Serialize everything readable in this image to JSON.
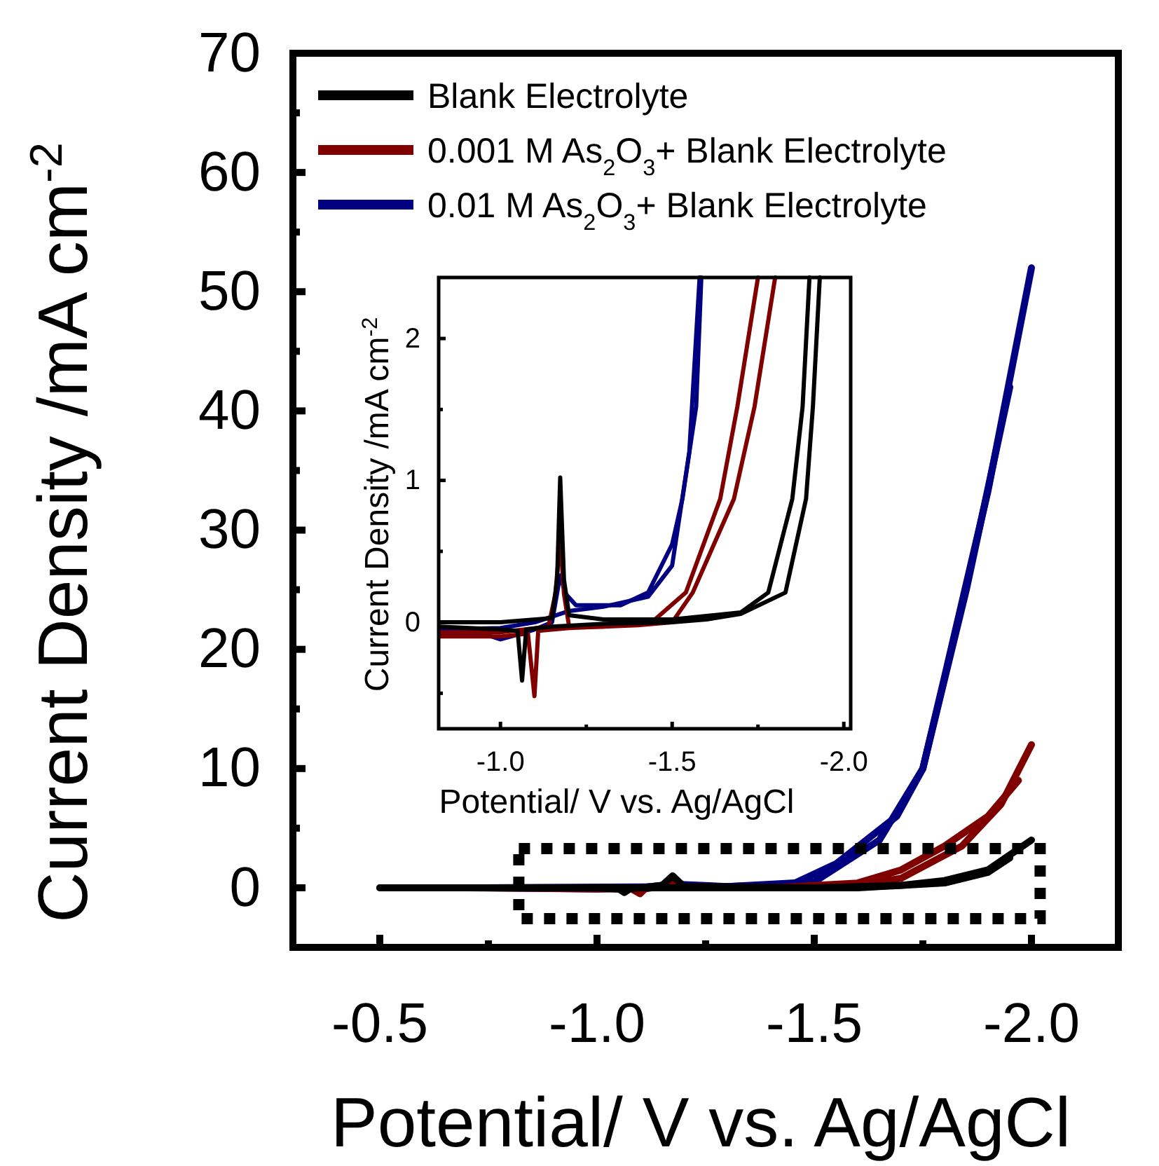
{
  "chart_data": [
    {
      "type": "line",
      "xlabel": "Potential/ V vs. Ag/AgCl",
      "ylabel": "Current Density /mA cm$^{-2}$",
      "xlim": [
        -0.3,
        -2.2
      ],
      "ylim": [
        -5,
        70
      ],
      "xticks": [
        {
          "value": -0.5,
          "label": "-0.5"
        },
        {
          "value": -0.75,
          "label": null
        },
        {
          "value": -1.0,
          "label": "-1.0"
        },
        {
          "value": -1.25,
          "label": null
        },
        {
          "value": -1.5,
          "label": "-1.5"
        },
        {
          "value": -1.75,
          "label": null
        },
        {
          "value": -2.0,
          "label": "-2.0"
        }
      ],
      "yticks": [
        0,
        {
          "value": 5,
          "label": null
        },
        10,
        {
          "value": 15,
          "label": null
        },
        20,
        {
          "value": 25,
          "label": null
        },
        30,
        {
          "value": 35,
          "label": null
        },
        40,
        {
          "value": 45,
          "label": null
        },
        50,
        {
          "value": 55,
          "label": null
        },
        60,
        {
          "value": 65,
          "label": null
        },
        70
      ],
      "legend": "top left",
      "line_style": "solid",
      "marker": "none",
      "grid": false,
      "series": [
        {
          "name": "Blank Electrolyte",
          "color": "#000000",
          "x": [
            -0.5,
            -1.0,
            -1.05,
            -1.063,
            -1.075,
            -1.15,
            -1.174,
            -1.2,
            -1.5,
            -1.7,
            -1.8,
            -1.9,
            -2.0
          ],
          "values": [
            0,
            0,
            -0.1,
            -0.4,
            -0.1,
            0.2,
            1.0,
            0.1,
            0,
            0.2,
            0.6,
            1.5,
            4.0
          ]
        },
        {
          "color": "#000000",
          "x": [
            -1.95,
            -1.9,
            -1.8,
            -1.6,
            -1.0,
            -0.5
          ],
          "values": [
            2.5,
            1.3,
            0.4,
            0,
            0,
            0
          ]
        },
        {
          "name": "0.001 M As$_{2}$O$_{3}$+  Blank Electrolyte",
          "color": "#800000",
          "x": [
            -0.7,
            -1.08,
            -1.099,
            -1.11,
            -1.16,
            -1.174,
            -1.19,
            -1.5,
            -1.6,
            -1.7,
            -1.84,
            -1.93,
            -2.0
          ],
          "values": [
            0,
            -0.1,
            -0.5,
            -0.1,
            0.2,
            0.6,
            0.1,
            0,
            0.2,
            0.8,
            3.5,
            7,
            12
          ]
        },
        {
          "color": "#800000",
          "x": [
            -1.97,
            -1.9,
            -1.8,
            -1.7,
            -1.6,
            -1.4,
            -0.7
          ],
          "values": [
            9,
            6,
            3.5,
            1.5,
            0.4,
            0,
            0
          ]
        },
        {
          "name": "0.01 M As$_{2}$O$_{3}$+  Blank Electrolyte",
          "color": "#000080",
          "x": [
            -0.74,
            -1.0,
            -1.1,
            -1.174,
            -1.3,
            -1.45,
            -1.55,
            -1.69,
            -1.75,
            -1.8,
            -1.9,
            -2.0
          ],
          "values": [
            0,
            -0.1,
            0,
            0.3,
            0.1,
            0.3,
            2.0,
            6,
            10,
            17.7,
            33.3,
            52
          ]
        },
        {
          "color": "#000080",
          "x": [
            -1.95,
            -1.85,
            -1.75,
            -1.65,
            -1.5,
            -1.3,
            -0.74
          ],
          "values": [
            42,
            25,
            10,
            4,
            0.5,
            0.1,
            0
          ]
        }
      ]
    },
    {
      "type": "line",
      "xlabel": "Potential/ V vs. Ag/AgCl",
      "ylabel": "Current Density /mA cm$^{-2}$",
      "xlim": [
        -0.82,
        -2.02
      ],
      "ylim": [
        -0.75,
        2.43
      ],
      "xticks": [
        {
          "value": -1.0,
          "label": "-1.0"
        },
        {
          "value": -1.25,
          "label": null
        },
        {
          "value": -1.5,
          "label": "-1.5"
        },
        {
          "value": -1.75,
          "label": null
        },
        {
          "value": -2.0,
          "label": "-2.0"
        }
      ],
      "yticks": [
        {
          "value": -0.5,
          "label": null
        },
        0,
        {
          "value": 0.5,
          "label": null
        },
        1,
        {
          "value": 1.5,
          "label": null
        },
        2
      ],
      "legend": false,
      "line_style": "solid",
      "marker": "none",
      "grid": false,
      "series": [
        {
          "color": "#000000",
          "x": [
            -0.82,
            -1.0,
            -1.05,
            -1.063,
            -1.075,
            -1.15,
            -1.3,
            -1.5,
            -1.6,
            -1.7,
            -1.83,
            -1.89,
            -1.91,
            -1.93
          ],
          "values": [
            -0.03,
            -0.05,
            -0.06,
            -0.41,
            -0.05,
            -0.03,
            -0.01,
            0,
            0.02,
            0.06,
            0.21,
            0.87,
            1.52,
            2.43
          ]
        },
        {
          "color": "#000000",
          "x": [
            -1.9,
            -1.88,
            -1.85,
            -1.78,
            -1.7,
            -1.5,
            -1.3,
            -1.2,
            -1.185,
            -1.174,
            -1.165,
            -1.15,
            -1.0,
            -0.82
          ],
          "values": [
            2.43,
            1.52,
            0.87,
            0.21,
            0.07,
            0.02,
            0.02,
            0.05,
            0.3,
            1.02,
            0.3,
            0.03,
            0,
            0
          ]
        },
        {
          "color": "#800000",
          "x": [
            -0.82,
            -1.0,
            -1.08,
            -1.099,
            -1.11,
            -1.2,
            -1.4,
            -1.5,
            -1.56,
            -1.68,
            -1.74,
            -1.8
          ],
          "values": [
            -0.1,
            -0.1,
            -0.08,
            -0.52,
            -0.06,
            -0.04,
            -0.02,
            0,
            0.21,
            0.87,
            1.52,
            2.43
          ]
        },
        {
          "color": "#800000",
          "x": [
            -1.75,
            -1.69,
            -1.64,
            -1.54,
            -1.45,
            -1.3,
            -1.2,
            -1.185,
            -1.174,
            -1.16,
            -1.14,
            -1.0,
            -0.82
          ],
          "values": [
            2.43,
            1.52,
            0.87,
            0.21,
            0.02,
            -0.03,
            -0.03,
            0.2,
            0.59,
            0.2,
            -0.03,
            -0.07,
            -0.07
          ]
        },
        {
          "color": "#000080",
          "x": [
            -0.82,
            -0.95,
            -1.0,
            -1.03,
            -1.1,
            -1.15,
            -1.174,
            -1.19,
            -1.22,
            -1.3,
            -1.35,
            -1.43,
            -1.5,
            -1.53,
            -1.57,
            -1.585
          ],
          "values": [
            -0.08,
            -0.08,
            -0.12,
            -0.1,
            -0.05,
            0,
            0.33,
            0.2,
            0.12,
            0.12,
            0.12,
            0.21,
            0.55,
            0.87,
            1.52,
            2.43
          ]
        },
        {
          "color": "#000080",
          "x": [
            -1.58,
            -1.55,
            -1.5,
            -1.43,
            -1.3,
            -1.2,
            -1.1,
            -1.0,
            -0.82
          ],
          "values": [
            2.43,
            1.2,
            0.4,
            0.18,
            0.11,
            0.08,
            0,
            -0.04,
            -0.05
          ]
        }
      ]
    }
  ]
}
